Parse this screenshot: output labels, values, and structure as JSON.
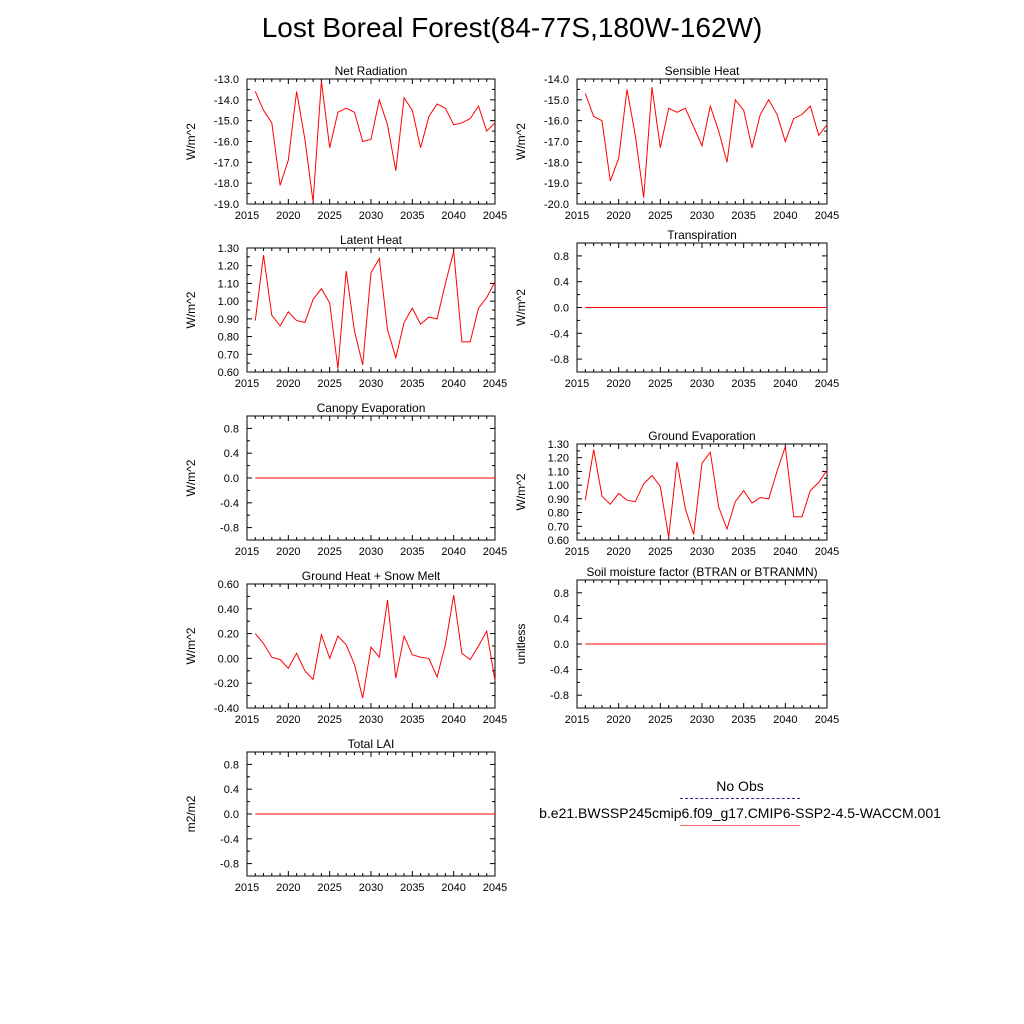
{
  "title": "Lost Boreal Forest(84-77S,180W-162W)",
  "legend": {
    "obs_label": "No Obs",
    "obs_color": "#2222aa",
    "model_label": "b.e21.BWSSP245cmip6.f09_g17.CMIP6-SSP2-4.5-WACCM.001",
    "model_color": "#ff0000"
  },
  "years": [
    2016,
    2017,
    2018,
    2019,
    2020,
    2021,
    2022,
    2023,
    2024,
    2025,
    2026,
    2027,
    2028,
    2029,
    2030,
    2031,
    2032,
    2033,
    2034,
    2035,
    2036,
    2037,
    2038,
    2039,
    2040,
    2041,
    2042,
    2043,
    2044,
    2045
  ],
  "chart_data": [
    {
      "type": "line",
      "title": "Net Radiation",
      "ylabel": "W/m^2",
      "xlim": [
        2015,
        2045
      ],
      "ylim": [
        -19.0,
        -13.0
      ],
      "xticks": [
        "2015",
        "2020",
        "2025",
        "2030",
        "2035",
        "2040",
        "2045"
      ],
      "yticks": [
        "-19.0",
        "-18.0",
        "-17.0",
        "-16.0",
        "-15.0",
        "-14.0",
        "-13.0"
      ],
      "ytick_values": [
        -19,
        -18,
        -17,
        -16,
        -15,
        -14,
        -13
      ],
      "series": [
        {
          "values": [
            -13.6,
            -14.5,
            -15.1,
            -18.1,
            -16.9,
            -13.6,
            -15.9,
            -18.9,
            -13.1,
            -16.3,
            -14.6,
            -14.4,
            -14.6,
            -16.0,
            -15.9,
            -14.0,
            -15.2,
            -17.4,
            -13.9,
            -14.5,
            -16.3,
            -14.8,
            -14.2,
            -14.4,
            -15.2,
            -15.1,
            -14.9,
            -14.3,
            -15.5,
            -15.1
          ]
        }
      ]
    },
    {
      "type": "line",
      "title": "Sensible Heat",
      "ylabel": "W/m^2",
      "xlim": [
        2015,
        2045
      ],
      "ylim": [
        -20.0,
        -14.0
      ],
      "xticks": [
        "2015",
        "2020",
        "2025",
        "2030",
        "2035",
        "2040",
        "2045"
      ],
      "yticks": [
        "-20.0",
        "-19.0",
        "-18.0",
        "-17.0",
        "-16.0",
        "-15.0",
        "-14.0"
      ],
      "ytick_values": [
        -20,
        -19,
        -18,
        -17,
        -16,
        -15,
        -14
      ],
      "series": [
        {
          "values": [
            -14.7,
            -15.8,
            -16.0,
            -18.9,
            -17.8,
            -14.5,
            -16.7,
            -19.7,
            -14.4,
            -17.3,
            -15.4,
            -15.6,
            -15.4,
            -16.3,
            -17.2,
            -15.3,
            -16.5,
            -18.0,
            -15.0,
            -15.5,
            -17.3,
            -15.7,
            -15.0,
            -15.7,
            -17.0,
            -15.9,
            -15.7,
            -15.3,
            -16.7,
            -16.2
          ]
        }
      ]
    },
    {
      "type": "line",
      "title": "Latent Heat",
      "ylabel": "W/m^2",
      "xlim": [
        2015,
        2045
      ],
      "ylim": [
        0.6,
        1.3
      ],
      "xticks": [
        "2015",
        "2020",
        "2025",
        "2030",
        "2035",
        "2040",
        "2045"
      ],
      "yticks": [
        "0.60",
        "0.70",
        "0.80",
        "0.90",
        "1.00",
        "1.10",
        "1.20",
        "1.30"
      ],
      "ytick_values": [
        0.6,
        0.7,
        0.8,
        0.9,
        1.0,
        1.1,
        1.2,
        1.3
      ],
      "series": [
        {
          "values": [
            0.89,
            1.26,
            0.92,
            0.86,
            0.94,
            0.89,
            0.88,
            1.01,
            1.07,
            0.99,
            0.62,
            1.17,
            0.83,
            0.64,
            1.16,
            1.24,
            0.84,
            0.68,
            0.88,
            0.96,
            0.87,
            0.91,
            0.9,
            1.1,
            1.28,
            0.77,
            0.77,
            0.96,
            1.02,
            1.11
          ]
        }
      ]
    },
    {
      "type": "line",
      "title": "Transpiration",
      "ylabel": "W/m^2",
      "xlim": [
        2015,
        2045
      ],
      "ylim": [
        -1.0,
        1.0
      ],
      "xticks": [
        "2015",
        "2020",
        "2025",
        "2030",
        "2035",
        "2040",
        "2045"
      ],
      "yticks": [
        "-0.8",
        "-0.4",
        "0.0",
        "0.4",
        "0.8"
      ],
      "ytick_values": [
        -0.8,
        -0.4,
        0.0,
        0.4,
        0.8
      ],
      "series": [
        {
          "values": [
            0,
            0,
            0,
            0,
            0,
            0,
            0,
            0,
            0,
            0,
            0,
            0,
            0,
            0,
            0,
            0,
            0,
            0,
            0,
            0,
            0,
            0,
            0,
            0,
            0,
            0,
            0,
            0,
            0,
            0
          ]
        }
      ]
    },
    {
      "type": "line",
      "title": "Canopy Evaporation",
      "ylabel": "W/m^2",
      "xlim": [
        2015,
        2045
      ],
      "ylim": [
        -1.0,
        1.0
      ],
      "xticks": [
        "2015",
        "2020",
        "2025",
        "2030",
        "2035",
        "2040",
        "2045"
      ],
      "yticks": [
        "-0.8",
        "-0.4",
        "0.0",
        "0.4",
        "0.8"
      ],
      "ytick_values": [
        -0.8,
        -0.4,
        0.0,
        0.4,
        0.8
      ],
      "series": [
        {
          "values": [
            0,
            0,
            0,
            0,
            0,
            0,
            0,
            0,
            0,
            0,
            0,
            0,
            0,
            0,
            0,
            0,
            0,
            0,
            0,
            0,
            0,
            0,
            0,
            0,
            0,
            0,
            0,
            0,
            0,
            0
          ]
        }
      ]
    },
    {
      "type": "line",
      "title": "Ground Evaporation",
      "ylabel": "W/m^2",
      "xlim": [
        2015,
        2045
      ],
      "ylim": [
        0.6,
        1.3
      ],
      "xticks": [
        "2015",
        "2020",
        "2025",
        "2030",
        "2035",
        "2040",
        "2045"
      ],
      "yticks": [
        "0.60",
        "0.70",
        "0.80",
        "0.90",
        "1.00",
        "1.10",
        "1.20",
        "1.30"
      ],
      "ytick_values": [
        0.6,
        0.7,
        0.8,
        0.9,
        1.0,
        1.1,
        1.2,
        1.3
      ],
      "series": [
        {
          "values": [
            0.89,
            1.26,
            0.92,
            0.86,
            0.94,
            0.89,
            0.88,
            1.01,
            1.07,
            0.99,
            0.62,
            1.17,
            0.83,
            0.64,
            1.16,
            1.24,
            0.84,
            0.68,
            0.88,
            0.96,
            0.87,
            0.91,
            0.9,
            1.1,
            1.28,
            0.77,
            0.77,
            0.96,
            1.02,
            1.11
          ]
        }
      ]
    },
    {
      "type": "line",
      "title": "Ground Heat + Snow Melt",
      "ylabel": "W/m^2",
      "xlim": [
        2015,
        2045
      ],
      "ylim": [
        -0.4,
        0.6
      ],
      "xticks": [
        "2015",
        "2020",
        "2025",
        "2030",
        "2035",
        "2040",
        "2045"
      ],
      "yticks": [
        "-0.40",
        "-0.20",
        "0.00",
        "0.20",
        "0.40",
        "0.60"
      ],
      "ytick_values": [
        -0.4,
        -0.2,
        0.0,
        0.2,
        0.4,
        0.6
      ],
      "series": [
        {
          "values": [
            0.2,
            0.12,
            0.01,
            -0.01,
            -0.08,
            0.04,
            -0.1,
            -0.17,
            0.19,
            0.0,
            0.18,
            0.11,
            -0.05,
            -0.32,
            0.09,
            0.01,
            0.47,
            -0.16,
            0.18,
            0.03,
            0.01,
            0.0,
            -0.15,
            0.11,
            0.51,
            0.04,
            -0.01,
            0.1,
            0.22,
            -0.18
          ]
        }
      ]
    },
    {
      "type": "line",
      "title": "Soil moisture factor (BTRAN or BTRANMN)",
      "ylabel": "unitless",
      "xlim": [
        2015,
        2045
      ],
      "ylim": [
        -1.0,
        1.0
      ],
      "xticks": [
        "2015",
        "2020",
        "2025",
        "2030",
        "2035",
        "2040",
        "2045"
      ],
      "yticks": [
        "-0.8",
        "-0.4",
        "0.0",
        "0.4",
        "0.8"
      ],
      "ytick_values": [
        -0.8,
        -0.4,
        0.0,
        0.4,
        0.8
      ],
      "series": [
        {
          "values": [
            0,
            0,
            0,
            0,
            0,
            0,
            0,
            0,
            0,
            0,
            0,
            0,
            0,
            0,
            0,
            0,
            0,
            0,
            0,
            0,
            0,
            0,
            0,
            0,
            0,
            0,
            0,
            0,
            0,
            0
          ]
        }
      ]
    },
    {
      "type": "line",
      "title": "Total LAI",
      "ylabel": "m2/m2",
      "xlim": [
        2015,
        2045
      ],
      "ylim": [
        -1.0,
        1.0
      ],
      "xticks": [
        "2015",
        "2020",
        "2025",
        "2030",
        "2035",
        "2040",
        "2045"
      ],
      "yticks": [
        "-0.8",
        "-0.4",
        "0.0",
        "0.4",
        "0.8"
      ],
      "ytick_values": [
        -0.8,
        -0.4,
        0.0,
        0.4,
        0.8
      ],
      "series": [
        {
          "values": [
            0,
            0,
            0,
            0,
            0,
            0,
            0,
            0,
            0,
            0,
            0,
            0,
            0,
            0,
            0,
            0,
            0,
            0,
            0,
            0,
            0,
            0,
            0,
            0,
            0,
            0,
            0,
            0,
            0,
            0
          ]
        }
      ]
    }
  ]
}
